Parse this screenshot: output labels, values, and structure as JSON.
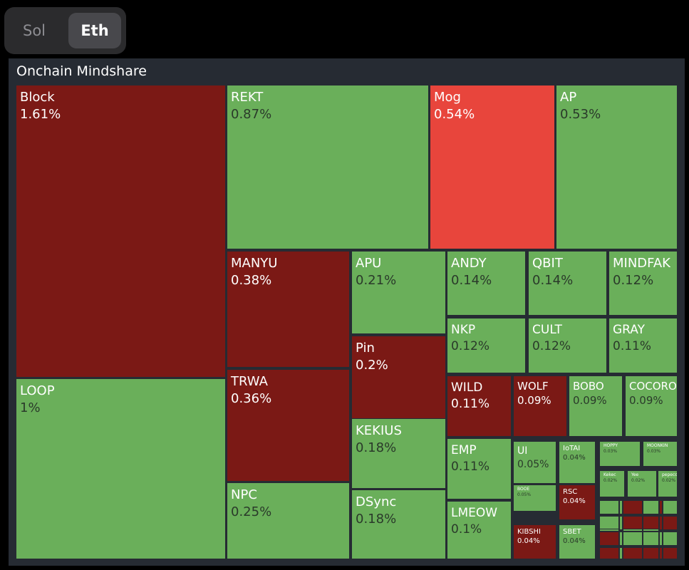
{
  "toggle": {
    "options": [
      "Sol",
      "Eth"
    ],
    "selected": "Eth"
  },
  "panel_title": "Onchain Mindshare",
  "colors": {
    "up": "#6aaf5a",
    "down": "#7b1915",
    "strong_down": "#e8453c",
    "text_on_dark": "#ffffff",
    "text_on_green": "#2a3a2a"
  },
  "chart_data": {
    "type": "treemap",
    "items": [
      {
        "name": "Block",
        "value": 1.61,
        "label": "1.61%",
        "trend": "down"
      },
      {
        "name": "LOOP",
        "value": 1.0,
        "label": "1%",
        "trend": "up"
      },
      {
        "name": "REKT",
        "value": 0.87,
        "label": "0.87%",
        "trend": "up"
      },
      {
        "name": "Mog",
        "value": 0.54,
        "label": "0.54%",
        "trend": "strong_down"
      },
      {
        "name": "AP",
        "value": 0.53,
        "label": "0.53%",
        "trend": "up"
      },
      {
        "name": "MANYU",
        "value": 0.38,
        "label": "0.38%",
        "trend": "down"
      },
      {
        "name": "TRWA",
        "value": 0.36,
        "label": "0.36%",
        "trend": "down"
      },
      {
        "name": "NPC",
        "value": 0.25,
        "label": "0.25%",
        "trend": "up"
      },
      {
        "name": "APU",
        "value": 0.21,
        "label": "0.21%",
        "trend": "up"
      },
      {
        "name": "Pin",
        "value": 0.2,
        "label": "0.2%",
        "trend": "down"
      },
      {
        "name": "KEKIUS",
        "value": 0.18,
        "label": "0.18%",
        "trend": "up"
      },
      {
        "name": "DSync",
        "value": 0.18,
        "label": "0.18%",
        "trend": "up"
      },
      {
        "name": "ANDY",
        "value": 0.14,
        "label": "0.14%",
        "trend": "up"
      },
      {
        "name": "QBIT",
        "value": 0.14,
        "label": "0.14%",
        "trend": "up"
      },
      {
        "name": "MINDFAK",
        "value": 0.12,
        "label": "0.12%",
        "trend": "up"
      },
      {
        "name": "NKP",
        "value": 0.12,
        "label": "0.12%",
        "trend": "up"
      },
      {
        "name": "CULT",
        "value": 0.12,
        "label": "0.12%",
        "trend": "up"
      },
      {
        "name": "GRAY",
        "value": 0.11,
        "label": "0.11%",
        "trend": "up"
      },
      {
        "name": "WILD",
        "value": 0.11,
        "label": "0.11%",
        "trend": "down"
      },
      {
        "name": "WOLF",
        "value": 0.09,
        "label": "0.09%",
        "trend": "down"
      },
      {
        "name": "BOBO",
        "value": 0.09,
        "label": "0.09%",
        "trend": "up"
      },
      {
        "name": "COCORO",
        "value": 0.09,
        "label": "0.09%",
        "trend": "up"
      },
      {
        "name": "EMP",
        "value": 0.11,
        "label": "0.11%",
        "trend": "up"
      },
      {
        "name": "LMEOW",
        "value": 0.1,
        "label": "0.1%",
        "trend": "up"
      },
      {
        "name": "UI",
        "value": 0.05,
        "label": "0.05%",
        "trend": "up"
      },
      {
        "name": "IoTAI",
        "value": 0.04,
        "label": "0.04%",
        "trend": "up"
      },
      {
        "name": "HOPPY",
        "value": 0.03,
        "label": "0.03%",
        "trend": "up"
      },
      {
        "name": "MOONKIN",
        "value": 0.03,
        "label": "0.03%",
        "trend": "up"
      },
      {
        "name": "BOOE",
        "value": 0.05,
        "label": "0.05%",
        "trend": "up"
      },
      {
        "name": "RSC",
        "value": 0.04,
        "label": "0.04%",
        "trend": "down"
      },
      {
        "name": "Kekec",
        "value": 0.02,
        "label": "0.02%",
        "trend": "up"
      },
      {
        "name": "Yee",
        "value": 0.02,
        "label": "0.02%",
        "trend": "up"
      },
      {
        "name": "pepecoin",
        "value": 0.02,
        "label": "0.02%",
        "trend": "up"
      },
      {
        "name": "KIBSHI",
        "value": 0.04,
        "label": "0.04%",
        "trend": "down"
      },
      {
        "name": "SBET",
        "value": 0.04,
        "label": "0.04%",
        "trend": "up"
      },
      {
        "name": "Kendu",
        "value": 0.02,
        "label": "0.02%",
        "trend": "up"
      },
      {
        "name": "SWAG",
        "value": 0.01,
        "label": "0.01%",
        "trend": "down"
      },
      {
        "name": "",
        "value": 0.01,
        "label": "",
        "trend": "up"
      },
      {
        "name": "",
        "value": 0.01,
        "label": "",
        "trend": "up"
      },
      {
        "name": "",
        "value": 0.01,
        "label": "",
        "trend": "up"
      },
      {
        "name": "",
        "value": 0.01,
        "label": "",
        "trend": "down"
      },
      {
        "name": "",
        "value": 0.01,
        "label": "",
        "trend": "down"
      },
      {
        "name": "",
        "value": 0.01,
        "label": "",
        "trend": "down"
      },
      {
        "name": "",
        "value": 0.01,
        "label": "",
        "trend": "down"
      },
      {
        "name": "",
        "value": 0.01,
        "label": "",
        "trend": "up"
      },
      {
        "name": "",
        "value": 0.01,
        "label": "",
        "trend": "up"
      },
      {
        "name": "",
        "value": 0.01,
        "label": "",
        "trend": "up"
      },
      {
        "name": "",
        "value": 0.01,
        "label": "",
        "trend": "down"
      },
      {
        "name": "",
        "value": 0.01,
        "label": "",
        "trend": "down"
      },
      {
        "name": "",
        "value": 0.01,
        "label": "",
        "trend": "down"
      },
      {
        "name": "",
        "value": 0.01,
        "label": "",
        "trend": "down"
      },
      {
        "name": "",
        "value": 0.01,
        "label": "",
        "trend": "up"
      },
      {
        "name": "",
        "value": 0.01,
        "label": "",
        "trend": "up"
      },
      {
        "name": "",
        "value": 0.01,
        "label": "",
        "trend": "up"
      },
      {
        "name": "",
        "value": 0.01,
        "label": "",
        "trend": "up"
      },
      {
        "name": "",
        "value": 0.01,
        "label": "",
        "trend": "down"
      },
      {
        "name": "",
        "value": 0.01,
        "label": "",
        "trend": "down"
      },
      {
        "name": "",
        "value": 0.01,
        "label": "",
        "trend": "up"
      },
      {
        "name": "",
        "value": 0.01,
        "label": "",
        "trend": "down"
      },
      {
        "name": "",
        "value": 0.01,
        "label": "",
        "trend": "up"
      },
      {
        "name": "",
        "value": 0.01,
        "label": "",
        "trend": "up"
      },
      {
        "name": "",
        "value": 0.01,
        "label": "",
        "trend": "up"
      }
    ]
  }
}
